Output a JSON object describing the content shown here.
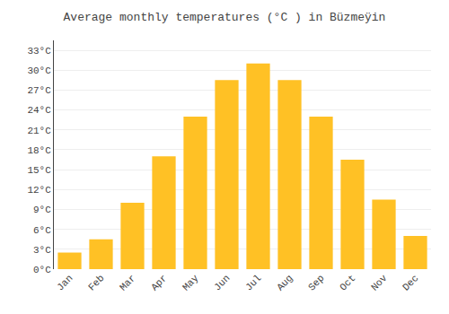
{
  "chart_data": {
    "type": "bar",
    "title": "Average monthly temperatures (°C ) in Büzmeÿin",
    "categories": [
      "Jan",
      "Feb",
      "Mar",
      "Apr",
      "May",
      "Jun",
      "Jul",
      "Aug",
      "Sep",
      "Oct",
      "Nov",
      "Dec"
    ],
    "values": [
      2.5,
      4.5,
      10.0,
      17.0,
      23.0,
      28.5,
      31.0,
      28.5,
      23.0,
      16.5,
      10.5,
      5.0
    ],
    "color": "#FFC125",
    "ylim": [
      0,
      34.5
    ],
    "yticks": [
      {
        "value": 0,
        "label": "0°C"
      },
      {
        "value": 3,
        "label": "3°C"
      },
      {
        "value": 6,
        "label": "6°C"
      },
      {
        "value": 9,
        "label": "9°C"
      },
      {
        "value": 12,
        "label": "12°C"
      },
      {
        "value": 15,
        "label": "15°C"
      },
      {
        "value": 18,
        "label": "18°C"
      },
      {
        "value": 21,
        "label": "21°C"
      },
      {
        "value": 24,
        "label": "24°C"
      },
      {
        "value": 27,
        "label": "27°C"
      },
      {
        "value": 30,
        "label": "30°C"
      },
      {
        "value": 33,
        "label": "33°C"
      }
    ],
    "grid": true
  }
}
